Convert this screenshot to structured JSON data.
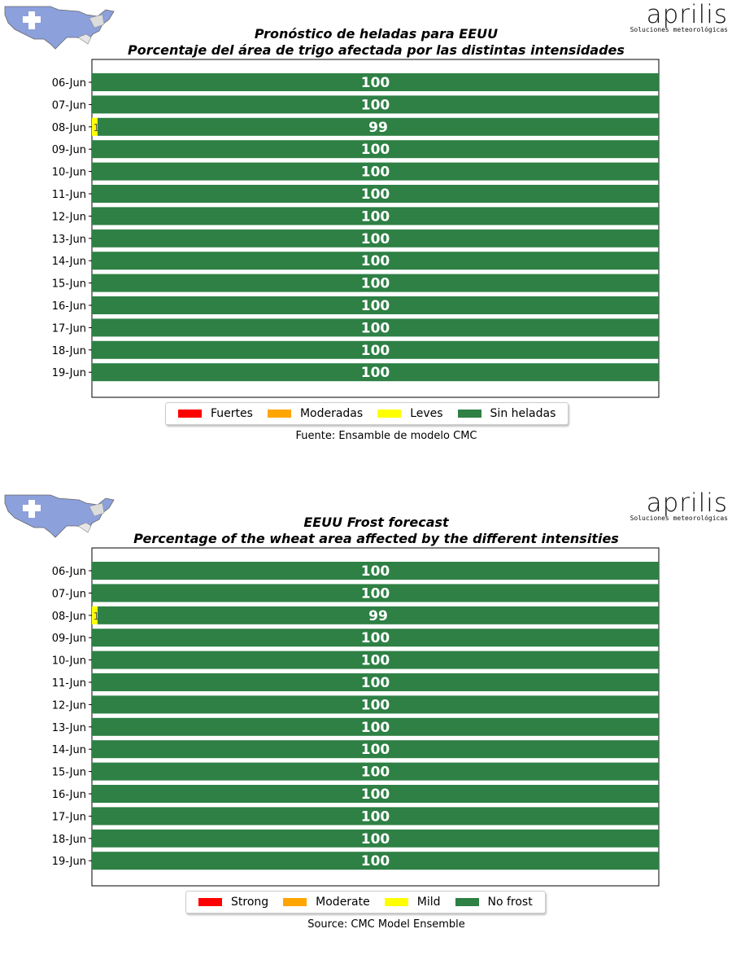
{
  "brand": {
    "name": "aprilis",
    "tagline": "Soluciones meteorológicas"
  },
  "colors": {
    "strong": "#ff0000",
    "moderate": "#ffa500",
    "mild": "#ffff00",
    "no_frost": "#2e8045",
    "map_fill": "#8ca0dc"
  },
  "icons": {
    "map": "us-map-icon"
  },
  "panels": [
    {
      "title_line1": "Pronóstico de heladas para EEUU",
      "title_line2": "Porcentaje del área de trigo afectada por las distintas intensidades",
      "source": "Fuente: Ensamble de modelo CMC",
      "legend": [
        {
          "key": "strong",
          "label": "Fuertes"
        },
        {
          "key": "moderate",
          "label": "Moderadas"
        },
        {
          "key": "mild",
          "label": "Leves"
        },
        {
          "key": "no_frost",
          "label": "Sin heladas"
        }
      ]
    },
    {
      "title_line1": "EEUU Frost forecast",
      "title_line2": "Percentage of the wheat area affected by the different intensities",
      "source": "Source: CMC Model Ensemble",
      "legend": [
        {
          "key": "strong",
          "label": "Strong"
        },
        {
          "key": "moderate",
          "label": "Moderate"
        },
        {
          "key": "mild",
          "label": "Mild"
        },
        {
          "key": "no_frost",
          "label": "No  frost"
        }
      ]
    }
  ],
  "chart_data": [
    {
      "type": "bar",
      "orientation": "horizontal",
      "stacked": true,
      "title": "Pronóstico de heladas para EEUU — Porcentaje del área de trigo afectada por las distintas intensidades",
      "categories": [
        "06-Jun",
        "07-Jun",
        "08-Jun",
        "09-Jun",
        "10-Jun",
        "11-Jun",
        "12-Jun",
        "13-Jun",
        "14-Jun",
        "15-Jun",
        "16-Jun",
        "17-Jun",
        "18-Jun",
        "19-Jun"
      ],
      "series": [
        {
          "name": "Fuertes",
          "values": [
            0,
            0,
            0,
            0,
            0,
            0,
            0,
            0,
            0,
            0,
            0,
            0,
            0,
            0
          ]
        },
        {
          "name": "Moderadas",
          "values": [
            0,
            0,
            0,
            0,
            0,
            0,
            0,
            0,
            0,
            0,
            0,
            0,
            0,
            0
          ]
        },
        {
          "name": "Leves",
          "values": [
            0,
            0,
            1,
            0,
            0,
            0,
            0,
            0,
            0,
            0,
            0,
            0,
            0,
            0
          ]
        },
        {
          "name": "Sin heladas",
          "values": [
            100,
            100,
            99,
            100,
            100,
            100,
            100,
            100,
            100,
            100,
            100,
            100,
            100,
            100
          ]
        }
      ],
      "xlim": [
        0,
        100
      ],
      "legend": "bottom-center",
      "grid": false
    },
    {
      "type": "bar",
      "orientation": "horizontal",
      "stacked": true,
      "title": "EEUU Frost forecast — Percentage of the wheat area affected by the different intensities",
      "categories": [
        "06-Jun",
        "07-Jun",
        "08-Jun",
        "09-Jun",
        "10-Jun",
        "11-Jun",
        "12-Jun",
        "13-Jun",
        "14-Jun",
        "15-Jun",
        "16-Jun",
        "17-Jun",
        "18-Jun",
        "19-Jun"
      ],
      "series": [
        {
          "name": "Strong",
          "values": [
            0,
            0,
            0,
            0,
            0,
            0,
            0,
            0,
            0,
            0,
            0,
            0,
            0,
            0
          ]
        },
        {
          "name": "Moderate",
          "values": [
            0,
            0,
            0,
            0,
            0,
            0,
            0,
            0,
            0,
            0,
            0,
            0,
            0,
            0
          ]
        },
        {
          "name": "Mild",
          "values": [
            0,
            0,
            1,
            0,
            0,
            0,
            0,
            0,
            0,
            0,
            0,
            0,
            0,
            0
          ]
        },
        {
          "name": "No  frost",
          "values": [
            100,
            100,
            99,
            100,
            100,
            100,
            100,
            100,
            100,
            100,
            100,
            100,
            100,
            100
          ]
        }
      ],
      "xlim": [
        0,
        100
      ],
      "legend": "bottom-center",
      "grid": false
    }
  ]
}
